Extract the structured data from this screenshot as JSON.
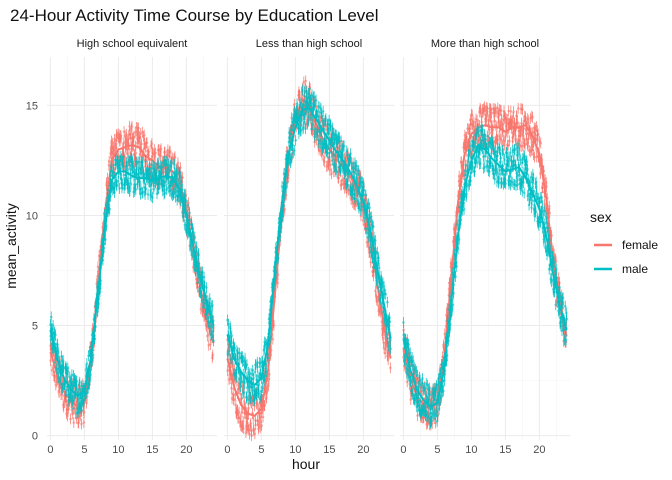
{
  "chart_data": {
    "type": "line",
    "title": "24-Hour Activity Time Course by Education Level",
    "xlabel": "hour",
    "ylabel": "mean_activity",
    "xlim": [
      -0.5,
      24.5
    ],
    "ylim": [
      -0.2,
      17.2
    ],
    "x_ticks": [
      0,
      5,
      10,
      15,
      20
    ],
    "y_ticks": [
      0,
      5,
      10,
      15
    ],
    "grid": true,
    "legend_position": "right",
    "legend_title": "sex",
    "series": [
      {
        "name": "female",
        "color": "#F8766D"
      },
      {
        "name": "male",
        "color": "#00BFC4"
      }
    ],
    "facets": [
      {
        "label": "High school equivalent",
        "female": {
          "x": [
            0,
            1,
            2,
            3,
            4,
            5,
            6,
            7,
            8,
            9,
            10,
            11,
            12,
            13,
            14,
            15,
            16,
            17,
            18,
            19,
            20,
            21,
            22,
            23,
            24
          ],
          "y": [
            3.8,
            2.8,
            2.0,
            1.6,
            1.3,
            1.5,
            3.5,
            6.8,
            10.0,
            12.5,
            13.0,
            13.1,
            13.2,
            13.1,
            12.7,
            12.5,
            12.2,
            12.2,
            12.0,
            11.5,
            10.2,
            8.5,
            6.8,
            5.3,
            4.2
          ],
          "spread": 0.9
        },
        "male": {
          "x": [
            0,
            1,
            2,
            3,
            4,
            5,
            6,
            7,
            8,
            9,
            10,
            11,
            12,
            13,
            14,
            15,
            16,
            17,
            18,
            19,
            20,
            21,
            22,
            23,
            24
          ],
          "y": [
            4.8,
            3.5,
            2.6,
            2.1,
            1.8,
            2.0,
            3.6,
            6.5,
            9.5,
            11.6,
            12.0,
            12.0,
            11.8,
            11.7,
            11.7,
            11.6,
            11.7,
            11.8,
            11.7,
            11.2,
            10.0,
            8.6,
            7.2,
            6.0,
            5.0
          ],
          "spread": 0.8
        }
      },
      {
        "label": "Less than high school",
        "female": {
          "x": [
            0,
            1,
            2,
            3,
            4,
            5,
            6,
            7,
            8,
            9,
            10,
            11,
            12,
            13,
            14,
            15,
            16,
            17,
            18,
            19,
            20,
            21,
            22,
            23,
            24
          ],
          "y": [
            3.5,
            2.2,
            1.4,
            1.0,
            0.9,
            1.2,
            3.0,
            6.5,
            10.0,
            12.8,
            14.3,
            15.3,
            15.0,
            14.2,
            13.5,
            13.0,
            12.6,
            12.2,
            11.8,
            11.3,
            10.5,
            9.0,
            7.0,
            5.0,
            3.5
          ],
          "spread": 1.0
        },
        "male": {
          "x": [
            0,
            1,
            2,
            3,
            4,
            5,
            6,
            7,
            8,
            9,
            10,
            11,
            12,
            13,
            14,
            15,
            16,
            17,
            18,
            19,
            20,
            21,
            22,
            23,
            24
          ],
          "y": [
            4.6,
            3.5,
            2.9,
            2.5,
            2.3,
            2.6,
            4.2,
            7.5,
            10.5,
            12.8,
            14.0,
            14.8,
            14.9,
            14.4,
            13.9,
            13.4,
            12.9,
            12.5,
            12.0,
            11.4,
            10.6,
            9.4,
            7.6,
            6.0,
            4.4
          ],
          "spread": 0.9
        }
      },
      {
        "label": "More than high school",
        "female": {
          "x": [
            0,
            1,
            2,
            3,
            4,
            5,
            6,
            7,
            8,
            9,
            10,
            11,
            12,
            13,
            14,
            15,
            16,
            17,
            18,
            19,
            20,
            21,
            22,
            23,
            24
          ],
          "y": [
            4.0,
            2.6,
            1.8,
            1.4,
            1.2,
            1.5,
            3.5,
            7.0,
            10.5,
            12.8,
            13.7,
            14.0,
            14.1,
            14.0,
            14.0,
            13.8,
            14.0,
            14.0,
            14.1,
            13.6,
            12.8,
            10.8,
            8.0,
            6.0,
            4.5
          ],
          "spread": 0.9
        },
        "male": {
          "x": [
            0,
            1,
            2,
            3,
            4,
            5,
            6,
            7,
            8,
            9,
            10,
            11,
            12,
            13,
            14,
            15,
            16,
            17,
            18,
            19,
            20,
            21,
            22,
            23,
            24
          ],
          "y": [
            4.4,
            3.0,
            2.1,
            1.6,
            1.3,
            1.5,
            3.0,
            6.0,
            9.0,
            11.3,
            12.5,
            13.2,
            13.0,
            12.6,
            12.3,
            12.0,
            12.1,
            12.2,
            11.7,
            11.0,
            10.3,
            9.1,
            7.4,
            5.9,
            4.8
          ],
          "spread": 0.9
        }
      }
    ]
  }
}
